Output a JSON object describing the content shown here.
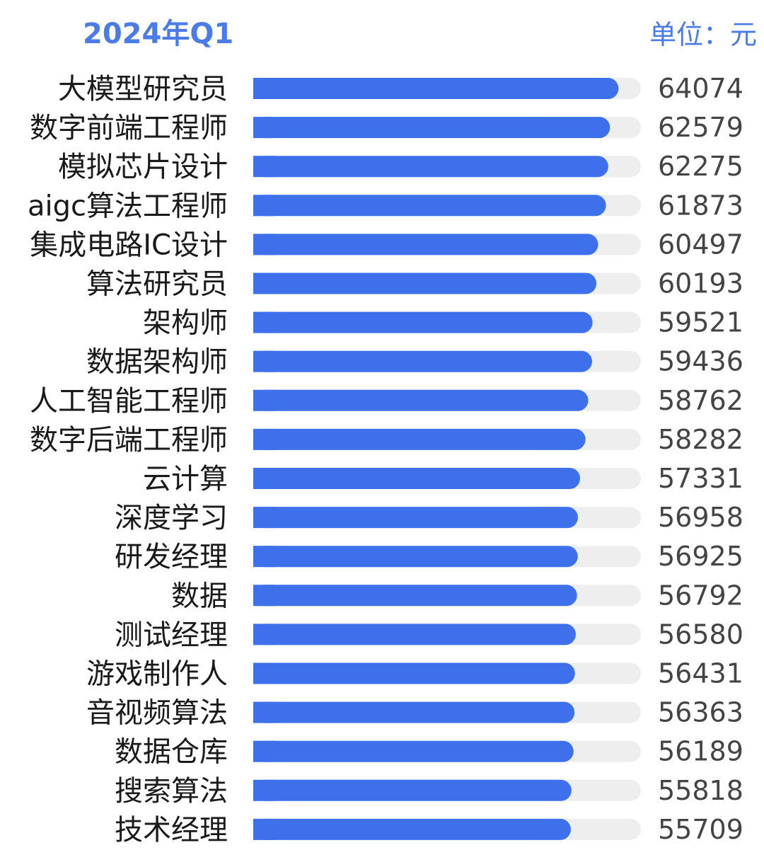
{
  "header": {
    "title": "2024年Q1",
    "unit": "单位：元"
  },
  "colors": {
    "accent": "#4a7be8",
    "bar": "#3f70ec",
    "track": "#eeeeee",
    "label": "#1a1a1a",
    "value": "#444444"
  },
  "chart_data": {
    "type": "bar",
    "orientation": "horizontal",
    "title": "2024年Q1",
    "unit": "单位：元",
    "categories": [
      "大模型研究员",
      "数字前端工程师",
      "模拟芯片设计",
      "aigc算法工程师",
      "集成电路IC设计",
      "算法研究员",
      "架构师",
      "数据架构师",
      "人工智能工程师",
      "数字后端工程师",
      "云计算",
      "深度学习",
      "研发经理",
      "数据",
      "测试经理",
      "游戏制作人",
      "音视频算法",
      "数据仓库",
      "搜索算法",
      "技术经理"
    ],
    "values": [
      64074,
      62579,
      62275,
      61873,
      60497,
      60193,
      59521,
      59436,
      58762,
      58282,
      57331,
      56958,
      56925,
      56792,
      56580,
      56431,
      56363,
      56189,
      55818,
      55709
    ],
    "xlim": [
      0,
      68000
    ],
    "grid": false,
    "legend": "none"
  }
}
